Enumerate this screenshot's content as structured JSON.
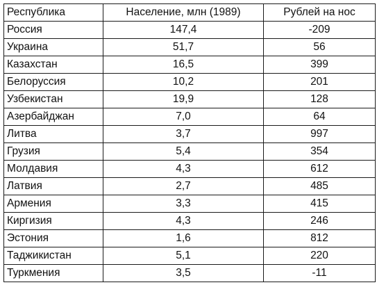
{
  "table": {
    "headers": [
      "Республика",
      "Население, млн (1989)",
      "Рублей на нос"
    ],
    "rows": [
      [
        "Россия",
        "147,4",
        "-209"
      ],
      [
        "Украина",
        "51,7",
        "56"
      ],
      [
        "Казахстан",
        "16,5",
        "399"
      ],
      [
        "Белоруссия",
        "10,2",
        "201"
      ],
      [
        "Узбекистан",
        "19,9",
        "128"
      ],
      [
        "Азербайджан",
        "7,0",
        "64"
      ],
      [
        "Литва",
        "3,7",
        "997"
      ],
      [
        "Грузия",
        "5,4",
        "354"
      ],
      [
        "Молдавия",
        "4,3",
        "612"
      ],
      [
        "Латвия",
        "2,7",
        "485"
      ],
      [
        "Армения",
        "3,3",
        "415"
      ],
      [
        "Киргизия",
        "4,3",
        "246"
      ],
      [
        "Эстония",
        "1,6",
        "812"
      ],
      [
        "Таджикистан",
        "5,1",
        "220"
      ],
      [
        "Туркмения",
        "3,5",
        "-11"
      ]
    ]
  }
}
